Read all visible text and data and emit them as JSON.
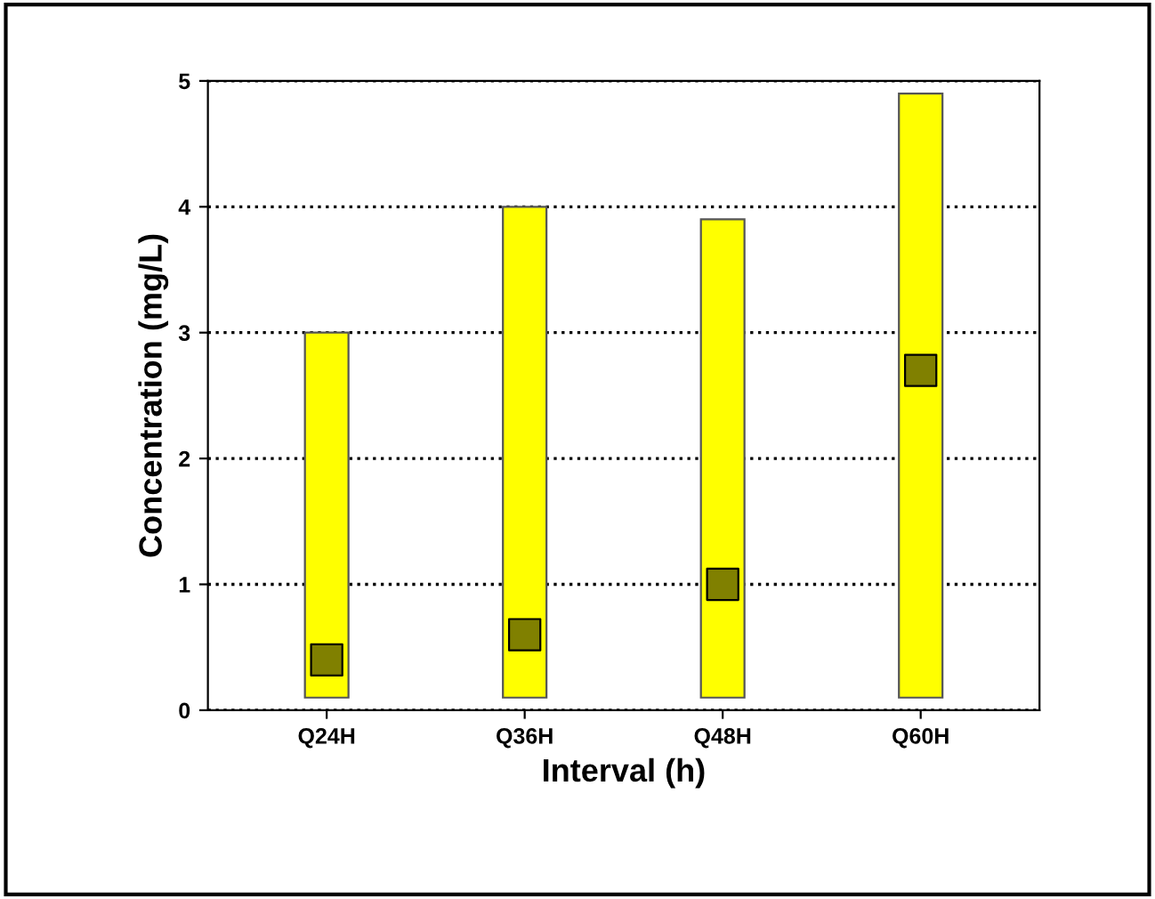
{
  "chart_data": {
    "type": "bar",
    "xlabel": "Interval (h)",
    "ylabel": "Concentration (mg/L)",
    "categories": [
      "Q24H",
      "Q36H",
      "Q48H",
      "Q60H"
    ],
    "ylim": [
      0,
      5
    ],
    "yticks": [
      0,
      1,
      2,
      3,
      4,
      5
    ],
    "grid": "y",
    "line_style": "dotted",
    "legend": false,
    "series": [
      {
        "color": "#ffff00",
        "base": [
          0.1,
          0.1,
          0.1,
          0.1
        ],
        "values": [
          2.9,
          3.9,
          3.8,
          4.8
        ]
      },
      {
        "type": "scatter",
        "color": "#808000",
        "marker": "square",
        "values": [
          0.4,
          0.6,
          1.0,
          2.7
        ]
      }
    ]
  }
}
